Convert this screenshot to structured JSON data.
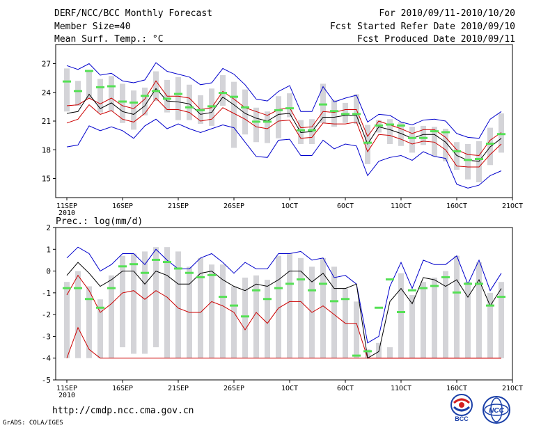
{
  "header": {
    "left": [
      "DERF/NCC/BCC Monthly Forecast",
      "Member Size=40",
      "Mean Surf. Temp.: °C"
    ],
    "right": [
      "For 2010/09/11-2010/10/20",
      "Fcst Started Refer Date 2010/09/10",
      "Fcst Produced Date 2010/09/11"
    ]
  },
  "footer": {
    "url": "http://cmdp.ncc.cma.gov.cn",
    "credit": "GrADS: COLA/IGES"
  },
  "logos": [
    {
      "text": "BCC",
      "icon": "bcc-logo-icon"
    },
    {
      "text": "NCC",
      "icon": "ncc-logo-icon"
    }
  ],
  "colors": {
    "box": "#d4d4d8",
    "ensemble_mean": "#000000",
    "bound": "#0000cc",
    "inner": "#cc0000",
    "median": "#55e055"
  },
  "chart_data": [
    {
      "type": "box",
      "title": "Mean Surf. Temp.: °C",
      "x_ticks": [
        "11SEP",
        "16SEP",
        "21SEP",
        "26SEP",
        "1OCT",
        "6OCT",
        "11OCT",
        "16OCT",
        "21OCT"
      ],
      "x_year_label": "2010",
      "x_tick_days": [
        0,
        5,
        10,
        15,
        20,
        25,
        30,
        35,
        40
      ],
      "xlim": [
        -1,
        40
      ],
      "ylim": [
        13,
        29
      ],
      "y_ticks": [
        15,
        18,
        21,
        24,
        27
      ],
      "days": [
        0,
        1,
        2,
        3,
        4,
        5,
        6,
        7,
        8,
        9,
        10,
        11,
        12,
        13,
        14,
        15,
        16,
        17,
        18,
        19,
        20,
        21,
        22,
        23,
        24,
        25,
        26,
        27,
        28,
        29,
        30,
        31,
        32,
        33,
        34,
        35,
        36,
        37,
        38,
        39
      ],
      "series": [
        {
          "name": "max",
          "values": [
            26.8,
            26.4,
            27.0,
            25.8,
            26.0,
            25.2,
            25.0,
            25.3,
            27.1,
            26.2,
            25.9,
            25.6,
            24.8,
            25.0,
            26.5,
            25.9,
            24.8,
            23.3,
            23.1,
            24.1,
            24.7,
            22.0,
            22.0,
            24.6,
            23.0,
            23.4,
            23.7,
            20.9,
            21.7,
            21.6,
            20.9,
            20.6,
            21.1,
            21.2,
            21.0,
            19.7,
            19.3,
            19.2,
            21.2,
            22.0
          ]
        },
        {
          "name": "upper",
          "values": [
            22.6,
            22.7,
            23.4,
            22.8,
            23.4,
            22.6,
            22.3,
            23.3,
            25.2,
            23.6,
            23.6,
            23.4,
            22.2,
            22.4,
            24.1,
            23.3,
            22.4,
            22.0,
            21.6,
            22.2,
            22.4,
            20.3,
            20.4,
            22.0,
            21.9,
            22.2,
            22.2,
            19.4,
            21.0,
            20.6,
            20.2,
            19.7,
            20.1,
            20.1,
            19.3,
            18.0,
            17.5,
            17.4,
            19.0,
            19.8
          ]
        },
        {
          "name": "mean",
          "values": [
            21.8,
            22.0,
            23.8,
            22.3,
            22.9,
            22.0,
            21.7,
            22.6,
            24.4,
            23.1,
            23.0,
            22.8,
            21.7,
            21.9,
            23.5,
            22.7,
            21.8,
            21.3,
            21.0,
            21.7,
            21.8,
            19.8,
            19.9,
            21.4,
            21.4,
            21.6,
            21.6,
            18.6,
            20.4,
            20.1,
            19.7,
            19.2,
            19.6,
            19.6,
            18.8,
            17.4,
            16.9,
            16.8,
            18.3,
            19.2
          ]
        },
        {
          "name": "lower",
          "values": [
            20.8,
            21.2,
            22.7,
            21.7,
            22.1,
            21.2,
            20.9,
            21.8,
            23.4,
            22.2,
            22.2,
            21.9,
            21.0,
            21.2,
            22.4,
            21.8,
            21.2,
            20.4,
            20.2,
            21.0,
            21.1,
            19.2,
            19.3,
            20.8,
            20.7,
            20.7,
            20.9,
            17.8,
            19.6,
            19.5,
            19.1,
            18.6,
            18.9,
            18.8,
            18.0,
            16.3,
            16.2,
            16.2,
            17.5,
            18.6
          ]
        },
        {
          "name": "min",
          "values": [
            18.3,
            18.5,
            20.5,
            20.0,
            20.4,
            20.0,
            19.2,
            20.5,
            21.2,
            20.2,
            20.7,
            20.2,
            19.8,
            20.2,
            20.6,
            20.3,
            18.8,
            17.3,
            17.2,
            19.0,
            19.1,
            17.4,
            17.4,
            19.0,
            18.1,
            18.6,
            18.4,
            15.3,
            16.8,
            17.2,
            17.4,
            16.9,
            17.8,
            17.3,
            17.1,
            14.4,
            14.0,
            14.3,
            15.3,
            15.8
          ]
        },
        {
          "name": "box_top",
          "values": [
            26.5,
            25.2,
            26.3,
            25.4,
            25.7,
            24.9,
            24.2,
            24.5,
            26.2,
            25.3,
            25.6,
            24.8,
            23.7,
            24.4,
            25.8,
            25.1,
            24.3,
            22.4,
            22.0,
            23.6,
            23.9,
            21.1,
            21.2,
            24.9,
            23.2,
            22.9,
            23.8,
            20.6,
            21.1,
            21.2,
            20.9,
            20.4,
            20.5,
            20.4,
            20.2,
            18.8,
            18.6,
            18.9,
            20.3,
            21.8
          ]
        },
        {
          "name": "box_bottom",
          "values": [
            22.0,
            22.6,
            23.3,
            21.9,
            22.0,
            20.8,
            20.1,
            21.6,
            23.1,
            21.9,
            21.1,
            21.1,
            20.7,
            20.5,
            22.6,
            18.2,
            19.6,
            18.8,
            18.7,
            19.2,
            21.4,
            18.6,
            18.6,
            20.8,
            20.4,
            20.8,
            20.7,
            16.5,
            19.8,
            18.6,
            18.4,
            17.7,
            18.5,
            17.3,
            16.8,
            15.9,
            14.9,
            14.6,
            16.4,
            17.7
          ]
        },
        {
          "name": "median",
          "values": [
            25.1,
            24.1,
            26.2,
            24.5,
            24.6,
            23.0,
            22.9,
            23.6,
            24.1,
            23.3,
            23.8,
            22.4,
            22.1,
            22.5,
            23.9,
            23.5,
            22.4,
            20.9,
            20.9,
            22.1,
            22.3,
            20.0,
            20.0,
            22.7,
            22.0,
            21.7,
            21.7,
            18.7,
            20.5,
            20.6,
            20.5,
            19.2,
            19.2,
            19.9,
            19.8,
            17.8,
            16.9,
            17.0,
            18.6,
            19.6
          ]
        }
      ]
    },
    {
      "type": "box",
      "title": "Prec.: log(mm/d)",
      "x_ticks": [
        "11SEP",
        "16SEP",
        "21SEP",
        "26SEP",
        "1OCT",
        "6OCT",
        "11OCT",
        "16OCT",
        "21OCT"
      ],
      "x_year_label": "2010",
      "x_tick_days": [
        0,
        5,
        10,
        15,
        20,
        25,
        30,
        35,
        40
      ],
      "xlim": [
        -1,
        40
      ],
      "ylim": [
        -5,
        2
      ],
      "y_ticks": [
        -5,
        -4,
        -3,
        -2,
        -1,
        0,
        1,
        2
      ],
      "days": [
        0,
        1,
        2,
        3,
        4,
        5,
        6,
        7,
        8,
        9,
        10,
        11,
        12,
        13,
        14,
        15,
        16,
        17,
        18,
        19,
        20,
        21,
        22,
        23,
        24,
        25,
        26,
        27,
        28,
        29,
        30,
        31,
        32,
        33,
        34,
        35,
        36,
        37,
        38,
        39
      ],
      "series": [
        {
          "name": "max",
          "values": [
            0.6,
            1.1,
            0.8,
            0.0,
            0.3,
            0.8,
            0.8,
            0.3,
            1.0,
            0.5,
            0.1,
            0.1,
            0.6,
            0.8,
            0.4,
            -0.1,
            0.4,
            0.1,
            0.1,
            0.8,
            0.8,
            0.9,
            0.5,
            0.6,
            -0.3,
            -0.2,
            -0.6,
            -3.3,
            -3.0,
            -0.7,
            0.4,
            -0.8,
            0.5,
            0.3,
            0.3,
            0.7,
            -0.6,
            0.5,
            -0.9,
            -0.1
          ]
        },
        {
          "name": "mean",
          "values": [
            -0.2,
            0.4,
            -0.1,
            -0.7,
            -0.4,
            0.0,
            0.0,
            -0.6,
            0.0,
            -0.2,
            -0.6,
            -0.6,
            -0.1,
            0.0,
            -0.4,
            -0.7,
            -0.9,
            -0.6,
            -0.7,
            -0.4,
            0.0,
            0.0,
            -0.5,
            -0.1,
            -0.8,
            -0.8,
            -0.6,
            -4.0,
            -3.7,
            -1.4,
            -0.8,
            -1.5,
            -0.3,
            -0.4,
            -0.7,
            -0.4,
            -1.2,
            -0.4,
            -1.6,
            -0.8
          ]
        },
        {
          "name": "upper",
          "values": [
            -1.1,
            -0.2,
            -0.9,
            -1.9,
            -1.5,
            -1.0,
            -0.9,
            -1.3,
            -0.9,
            -1.2,
            -1.7,
            -1.9,
            -1.9,
            -1.4,
            -1.6,
            -1.9,
            -2.7,
            -1.9,
            -2.4,
            -1.7,
            -1.4,
            -1.4,
            -1.9,
            -1.6,
            -2.0,
            -2.4,
            -2.4,
            -4.0,
            -4.0,
            -4.0,
            -4.0,
            -4.0,
            -4.0,
            -4.0,
            -4.0,
            -4.0,
            -4.0,
            -4.0,
            -4.0,
            -4.0
          ]
        },
        {
          "name": "lower",
          "values": [
            -4.0,
            -2.6,
            -3.6,
            -4.0,
            -4.0,
            -4.0,
            -4.0,
            -4.0,
            -4.0,
            -4.0,
            -4.0,
            -4.0,
            -4.0,
            -4.0,
            -4.0,
            -4.0,
            -4.0,
            -4.0,
            -4.0,
            -4.0,
            -4.0,
            -4.0,
            -4.0,
            -4.0,
            -4.0,
            -4.0,
            -4.0,
            -4.0,
            -4.0,
            -4.0,
            -4.0,
            -4.0,
            -4.0,
            -4.0,
            -4.0,
            -4.0,
            -4.0,
            -4.0,
            -4.0,
            -4.0
          ]
        },
        {
          "name": "box_top",
          "values": [
            -0.5,
            0.0,
            -0.7,
            -1.3,
            -0.2,
            0.7,
            0.8,
            0.9,
            1.1,
            1.1,
            0.9,
            0.2,
            0.6,
            0.3,
            0.3,
            -0.7,
            -0.3,
            -0.2,
            -0.4,
            0.7,
            0.8,
            0.6,
            0.2,
            0.6,
            0.2,
            -0.8,
            -1.4,
            -3.6,
            -3.3,
            -3.5,
            -0.1,
            -1.1,
            -0.5,
            -0.3,
            0.0,
            0.7,
            -0.5,
            0.4,
            -1.0,
            -0.5
          ]
        },
        {
          "name": "box_bottom",
          "values": [
            -4.0,
            -4.0,
            -4.0,
            -4.0,
            -4.0,
            -3.5,
            -3.8,
            -3.8,
            -3.5,
            -4.0,
            -4.0,
            -4.0,
            -4.0,
            -4.0,
            -4.0,
            -4.0,
            -4.0,
            -4.0,
            -4.0,
            -4.0,
            -4.0,
            -4.0,
            -4.0,
            -4.0,
            -4.0,
            -4.0,
            -4.0,
            -4.0,
            -4.0,
            -4.0,
            -4.0,
            -4.0,
            -4.0,
            -4.0,
            -4.0,
            -4.0,
            -4.0,
            -4.0,
            -4.0,
            -4.0
          ]
        },
        {
          "name": "median",
          "values": [
            -0.8,
            -0.8,
            -1.3,
            -1.7,
            -0.8,
            0.2,
            0.3,
            -0.1,
            0.5,
            0.4,
            0.1,
            -0.1,
            -0.3,
            -0.2,
            -1.2,
            -1.6,
            -2.1,
            -0.9,
            -1.3,
            -0.8,
            -0.6,
            -0.4,
            -0.9,
            -0.6,
            -1.4,
            -1.3,
            -3.9,
            -3.7,
            -1.7,
            -0.4,
            -1.9,
            -0.9,
            -0.8,
            -0.7,
            -0.3,
            -1.0,
            -0.6,
            -0.6,
            -1.6,
            -1.2
          ]
        }
      ]
    }
  ]
}
